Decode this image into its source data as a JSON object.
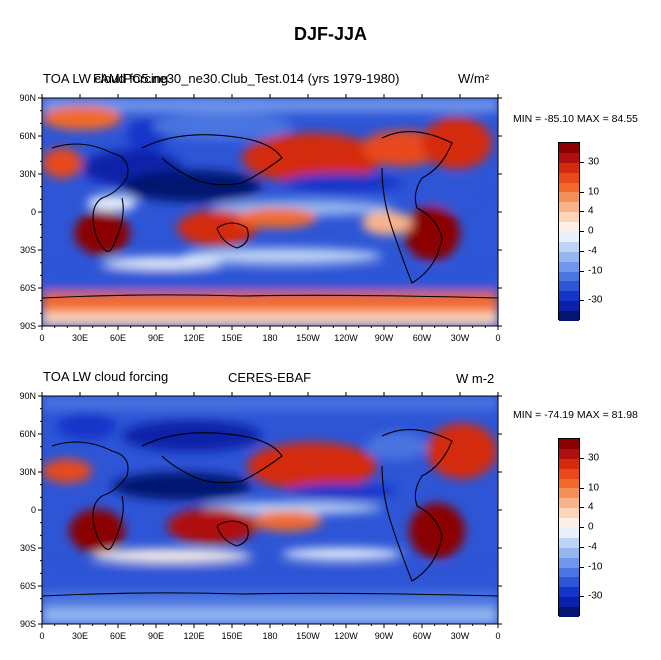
{
  "title": "DJF-JJA",
  "colors": {
    "levels": [
      "#8b0000",
      "#b00f0f",
      "#d42a0e",
      "#e8481a",
      "#f26a2a",
      "#f6905a",
      "#f9b38a",
      "#fcd4b9",
      "#fdf0e6",
      "#e8f0fb",
      "#bdd4f4",
      "#93b6ef",
      "#6f96ea",
      "#4a75e0",
      "#2d55d6",
      "#1435c9",
      "#0a20a8",
      "#051470"
    ],
    "land": "#000000"
  },
  "panels": [
    {
      "id": "top",
      "left_label": "TOA LW cloud forcing",
      "center_label": "FAMIPC5.ne30_ne30.Club_Test.014 (yrs 1979-1980)",
      "units": "W/m²",
      "minmax": "MIN = -85.10 MAX =  84.55"
    },
    {
      "id": "bottom",
      "left_label": "TOA LW cloud forcing",
      "center_label": "CERES-EBAF",
      "units": "W m-2",
      "minmax": "MIN = -74.19 MAX =  81.98"
    }
  ],
  "lat_ticks": [
    "90N",
    "60N",
    "30N",
    "0",
    "30S",
    "60S",
    "90S"
  ],
  "lon_ticks": [
    "0",
    "30E",
    "60E",
    "90E",
    "120E",
    "150E",
    "180",
    "150W",
    "120W",
    "90W",
    "60W",
    "30W",
    "0"
  ],
  "colorbar_labels": [
    "30",
    "10",
    "4",
    "0",
    "-4",
    "-10",
    "-30"
  ]
}
